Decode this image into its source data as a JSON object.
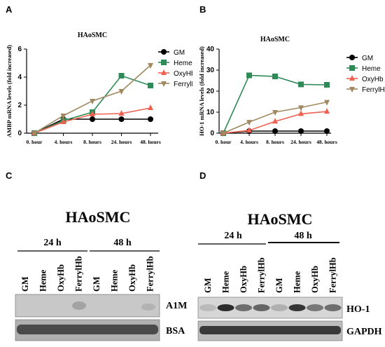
{
  "panels": {
    "A": {
      "letter": "A"
    },
    "B": {
      "letter": "B"
    },
    "C": {
      "letter": "C",
      "title": "HAoSMC",
      "time_labels": [
        "24 h",
        "48 h"
      ],
      "lanes": [
        "GM",
        "Heme",
        "OxyHb",
        "FerrylHb",
        "GM",
        "Heme",
        "OxyHb",
        "FerrylHb"
      ],
      "blot_labels": [
        "A1M",
        "BSA"
      ]
    },
    "D": {
      "letter": "D",
      "title": "HAoSMC",
      "time_labels": [
        "24 h",
        "48 h"
      ],
      "lanes": [
        "GM",
        "Heme",
        "OxyHb",
        "FerrylHb",
        "GM",
        "Heme",
        "OxyHb",
        "FerrylHb"
      ],
      "blot_labels": [
        "HO-1",
        "GAPDH"
      ]
    }
  },
  "chart_data": [
    {
      "type": "line",
      "title": "HAoSMC",
      "xlabel": "",
      "ylabel": "AMBP mRNA levels (fold increased)",
      "categories": [
        "0. hour",
        "4. hours",
        "8. hours",
        "24. hours",
        "48. hours"
      ],
      "ylim": [
        0,
        6
      ],
      "yticks": [
        "0",
        "2",
        "4",
        "6"
      ],
      "legend_position": "right",
      "series": [
        {
          "name": "GM",
          "color": "#000000",
          "marker": "circle",
          "values": [
            0,
            1.0,
            1.0,
            1.0,
            1.0
          ]
        },
        {
          "name": "Heme",
          "color": "#2e8b57",
          "marker": "square",
          "values": [
            0,
            0.9,
            1.5,
            4.1,
            3.4
          ]
        },
        {
          "name": "OxyHb",
          "color": "#f06050",
          "marker": "triangle-up",
          "values": [
            0,
            0.8,
            1.35,
            1.4,
            1.8
          ]
        },
        {
          "name": "FerrylHb",
          "color": "#a08860",
          "marker": "triangle-down",
          "values": [
            0,
            1.25,
            2.3,
            3.0,
            4.85
          ]
        }
      ]
    },
    {
      "type": "line",
      "title": "HAoSMC",
      "xlabel": "",
      "ylabel": "HO-1 mRNA levels (fold increased)",
      "categories": [
        "0. hour",
        "4. hours",
        "8. hours",
        "24. hours",
        "48. hours"
      ],
      "ylim": [
        0,
        40
      ],
      "yticks": [
        "0",
        "10",
        "20",
        "30",
        "40"
      ],
      "legend_position": "right",
      "series": [
        {
          "name": "GM",
          "color": "#000000",
          "marker": "circle",
          "values": [
            0,
            1.0,
            1.0,
            1.0,
            1.0
          ]
        },
        {
          "name": "Heme",
          "color": "#2e8b57",
          "marker": "square",
          "values": [
            0,
            27.5,
            27.0,
            23.2,
            23.0
          ]
        },
        {
          "name": "OxyHb",
          "color": "#f06050",
          "marker": "triangle-up",
          "values": [
            0,
            1.3,
            5.6,
            9.2,
            10.3
          ]
        },
        {
          "name": "FerrylHb",
          "color": "#a08860",
          "marker": "triangle-down",
          "values": [
            0,
            5.3,
            10.0,
            12.2,
            14.8
          ]
        }
      ]
    }
  ]
}
